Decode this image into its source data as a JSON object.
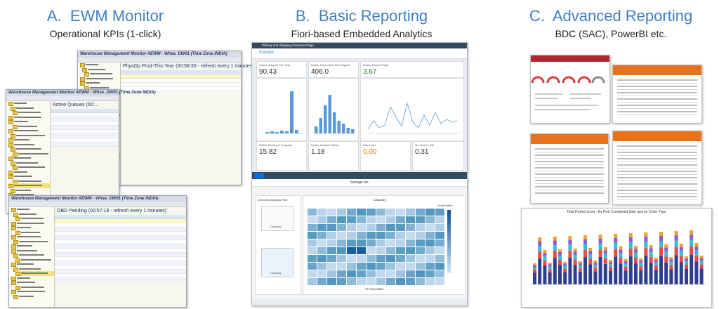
{
  "sections": [
    {
      "letter": "A.",
      "title": "EWM Monitor",
      "subtitle": "Operational KPIs (1-click)"
    },
    {
      "letter": "B.",
      "title": "Basic Reporting",
      "subtitle": "Fiori-based Embedded Analytics"
    },
    {
      "letter": "C.",
      "title": "Advanced Reporting",
      "subtitle": "BDC (SAC), PowerBI etc."
    }
  ],
  "ewm": {
    "win1_title": "Warehouse Management Monitor AEWM - Whse. DW01 (Time Zone INDIA)",
    "win1_header": "PhysOp Prod-This Year (00:58:33 - refresh every 1 minutes)",
    "win2_title": "Warehouse Management Monitor AEWM - Whse. DW01 (Time Zone INDIA)",
    "win2_header": "Active Queues (00:...",
    "win3_title": "Warehouse Management Monitor AEWM - Whse. DW01 (Time Zone INDIA)",
    "win3_header": "OBD Pending (00:57:18 - refresh every 1 minutes)"
  },
  "fiori": {
    "app_title": "Picking and Shipping Overview Page",
    "variant": "Custom",
    "kpis": [
      {
        "label": "Cases Shipped Per Hour",
        "value": "90.43",
        "color": "#333333"
      },
      {
        "label": "Earlier Picked and Not Shipped",
        "value": "406.0",
        "color": "#333333"
      },
      {
        "label": "Earlier Picked Today",
        "value": "3.67",
        "color": "#2b7d2b"
      },
      {
        "label": "Earlier Picking In Progress",
        "value": "15.82",
        "color": "#333333"
      },
      {
        "label": "Earlier Created Today",
        "value": "1.18",
        "color": "#333333"
      },
      {
        "label": "Late Lines",
        "value": "0.00",
        "color": "#e07a00"
      },
      {
        "label": "On Time In Full",
        "value": "0.31",
        "color": "#333333"
      }
    ],
    "analysis_title": "Storage bin",
    "analysis_path": "Unnamed Analysis Path",
    "capacity_label": "Capacity",
    "heatmap_title": "Capacity",
    "heatmap_xlabel": "STORAGEBIN",
    "heatmap_legend": "Count/Fullbins"
  },
  "advanced": {
    "chart_title": "Total Picked Lines - By Pick Completed Date and by Order Type"
  }
}
